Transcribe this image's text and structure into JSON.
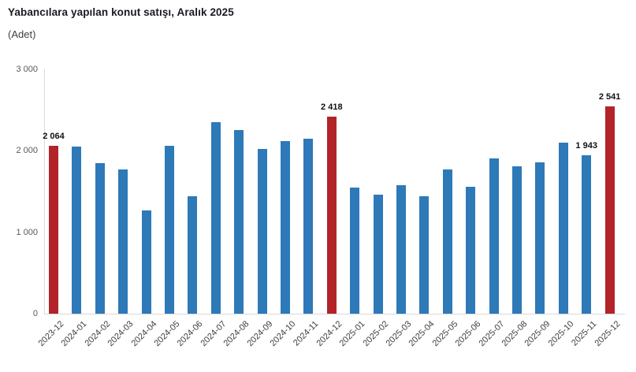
{
  "title": "Yabancılara yapılan konut satışı, Aralık 2025",
  "subtitle": "(Adet)",
  "colors": {
    "bar_blue": "#2E79B8",
    "bar_red": "#B22429",
    "axis_line": "#D9D9D9",
    "tick_text": "#595959",
    "xlabel_text": "#404040",
    "title_text": "#1A1A24",
    "data_label_text": "#111111"
  },
  "chart_data": {
    "type": "bar",
    "title": "Yabancılara yapılan konut satışı, Aralık 2025",
    "unit_label": "(Adet)",
    "categories": [
      "2023-12",
      "2024-01",
      "2024-02",
      "2024-03",
      "2024-04",
      "2024-05",
      "2024-06",
      "2024-07",
      "2024-08",
      "2024-09",
      "2024-10",
      "2024-11",
      "2024-12",
      "2025-01",
      "2025-02",
      "2025-03",
      "2025-04",
      "2025-05",
      "2025-06",
      "2025-07",
      "2025-08",
      "2025-09",
      "2025-10",
      "2025-11",
      "2025-12"
    ],
    "values": [
      2064,
      2055,
      1845,
      1775,
      1270,
      2058,
      1440,
      2350,
      2255,
      2020,
      2120,
      2150,
      2418,
      1548,
      1460,
      1573,
      1445,
      1767,
      1560,
      1910,
      1806,
      1861,
      2103,
      1943,
      2541
    ],
    "highlight_indices": [
      0,
      12,
      24
    ],
    "bar_color": "#2E79B8",
    "highlight_color": "#B22429",
    "data_labels": [
      {
        "index": 0,
        "text": "2 064"
      },
      {
        "index": 12,
        "text": "2 418"
      },
      {
        "index": 23,
        "text": "1 943"
      },
      {
        "index": 24,
        "text": "2 541"
      }
    ],
    "xlabel": "",
    "ylabel": "(Adet)",
    "ylim": [
      0,
      3000
    ],
    "yticks": [
      0,
      1000,
      2000,
      3000
    ],
    "ytick_labels": [
      "0",
      "1 000",
      "2 000",
      "3 000"
    ],
    "grid": false,
    "legend": null
  }
}
